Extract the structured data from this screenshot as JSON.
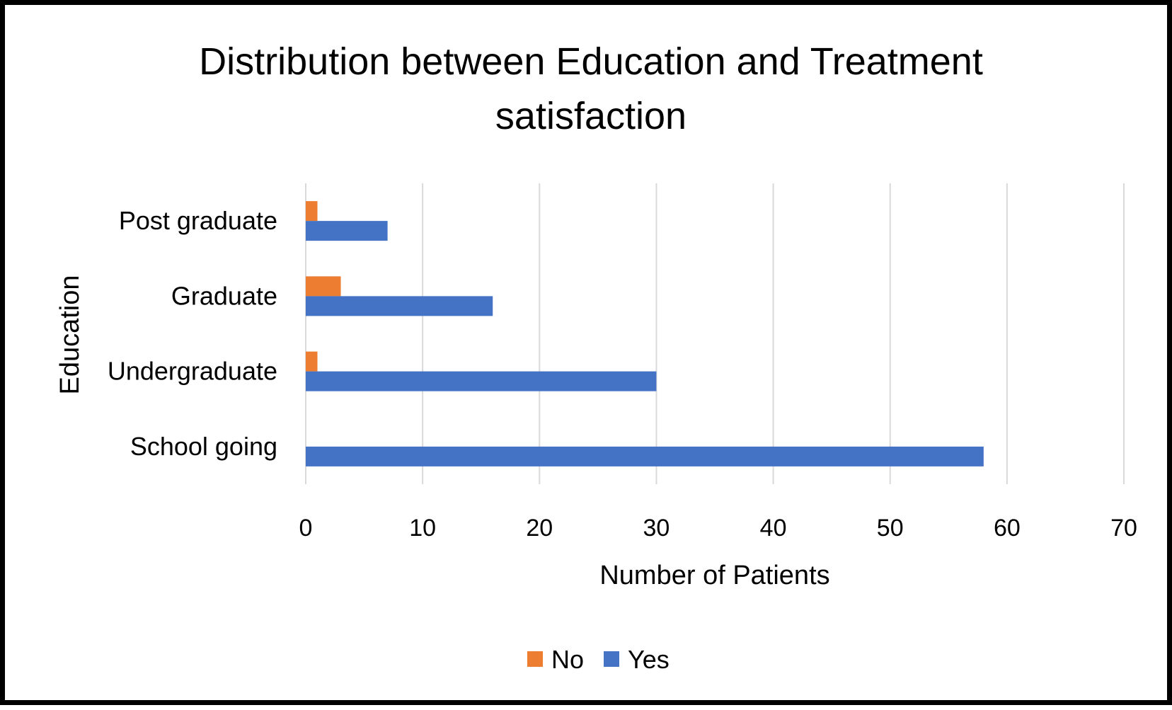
{
  "chart_data": {
    "type": "bar",
    "orientation": "horizontal",
    "title_lines": [
      "Distribution between Education and Treatment",
      "satisfaction"
    ],
    "xlabel": "Number of Patients",
    "ylabel": "Education",
    "categories": [
      "Post graduate",
      "Graduate",
      "Undergraduate",
      "School going"
    ],
    "series": [
      {
        "name": "No",
        "color": "#ED7D31",
        "values": [
          1,
          3,
          1,
          0
        ]
      },
      {
        "name": "Yes",
        "color": "#4472C4",
        "values": [
          7,
          16,
          30,
          58
        ]
      }
    ],
    "xlim": [
      0,
      70
    ],
    "xticks": [
      "0",
      "10",
      "20",
      "30",
      "40",
      "50",
      "60",
      "70"
    ],
    "grid": true,
    "legend_position": "bottom"
  }
}
